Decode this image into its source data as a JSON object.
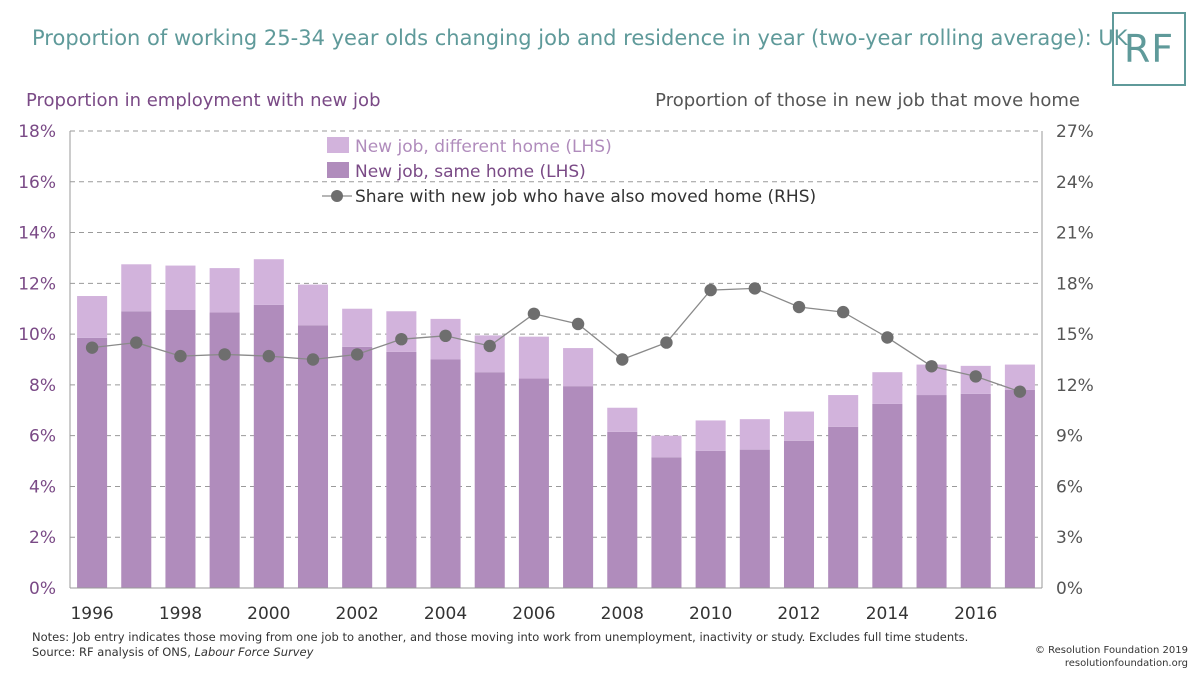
{
  "title": "Proportion of working 25-34 year olds changing job and residence in year (two-year rolling average): UK",
  "logo": "RF",
  "notes": {
    "line1": "Notes: Job entry indicates those moving from one job to another, and those moving into work from unemployment, inactivity or study. Excludes full time students.",
    "source_prefix": "Source: RF analysis of ONS, ",
    "source_title": "Labour Force Survey"
  },
  "credit": {
    "line1": "© Resolution Foundation 2019",
    "line2": "resolutionfoundation.org"
  },
  "colors": {
    "title": "#5f9a9a",
    "same_home": "#b08cbc",
    "different_home": "#d2b3dc",
    "line": "#6e6e6e",
    "left_axis": "#7a4a86",
    "right_axis": "#555555"
  },
  "chart_data": {
    "type": "bar",
    "stacked": true,
    "title": "Proportion of working 25-34 year olds changing job and residence in year (two-year rolling average): UK",
    "ylabel_left": "Proportion in employment with new job",
    "ylabel_right": "Proportion of those in new job that move home",
    "ylim_left": [
      0,
      18
    ],
    "ylim_right": [
      0,
      27
    ],
    "yticks_left": [
      "0%",
      "2%",
      "4%",
      "6%",
      "8%",
      "10%",
      "12%",
      "14%",
      "16%",
      "18%"
    ],
    "yticks_right": [
      "0%",
      "3%",
      "6%",
      "9%",
      "12%",
      "15%",
      "18%",
      "21%",
      "24%",
      "27%"
    ],
    "xtick_labels": [
      "1996",
      "1998",
      "2000",
      "2002",
      "2004",
      "2006",
      "2008",
      "2010",
      "2012",
      "2014",
      "2016"
    ],
    "categories": [
      "1996",
      "1997",
      "1998",
      "1999",
      "2000",
      "2001",
      "2002",
      "2003",
      "2004",
      "2005",
      "2006",
      "2007",
      "2008",
      "2009",
      "2010",
      "2011",
      "2012",
      "2013",
      "2014",
      "2015",
      "2016",
      "2017"
    ],
    "series": [
      {
        "name": "New job, same home (LHS)",
        "axis": "left",
        "kind": "bar",
        "values": [
          9.85,
          10.9,
          10.95,
          10.85,
          11.15,
          10.35,
          9.5,
          9.3,
          9.0,
          8.5,
          8.25,
          7.95,
          6.15,
          5.15,
          5.4,
          5.45,
          5.8,
          6.35,
          7.25,
          7.6,
          7.65,
          7.8
        ]
      },
      {
        "name": "New job, different home (LHS)",
        "axis": "left",
        "kind": "bar",
        "values": [
          1.65,
          1.85,
          1.75,
          1.75,
          1.8,
          1.6,
          1.5,
          1.6,
          1.6,
          1.45,
          1.65,
          1.5,
          0.95,
          0.85,
          1.2,
          1.2,
          1.15,
          1.25,
          1.25,
          1.2,
          1.1,
          1.0
        ]
      },
      {
        "name": "Share with new job who have also moved home (RHS)",
        "axis": "right",
        "kind": "line",
        "values": [
          14.2,
          14.5,
          13.7,
          13.8,
          13.7,
          13.5,
          13.8,
          14.7,
          14.9,
          14.3,
          16.2,
          15.6,
          13.5,
          14.5,
          17.6,
          17.7,
          16.6,
          16.3,
          14.8,
          13.1,
          12.5,
          11.6
        ]
      }
    ],
    "legend": {
      "position": "top-center",
      "entries": [
        "New job, different home (LHS)",
        "New job, same home (LHS)",
        "Share with new job who have also moved home (RHS)"
      ]
    },
    "grid": true
  }
}
